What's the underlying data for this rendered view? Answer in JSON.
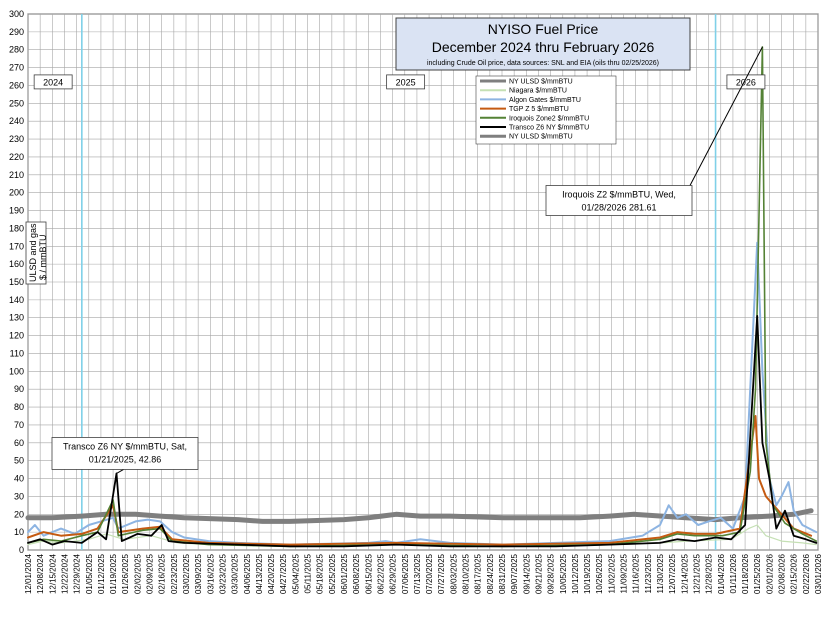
{
  "chart_data": {
    "type": "line",
    "title": "NYISO Fuel Price",
    "title_line2": "December 2024 thru February 2026",
    "subtitle": "including Crude Oil price, data sources: SNL and EIA (oils thru  02/25/2026)",
    "ylabel_line1": "ULSD and gas",
    "ylabel_line2": "$ / mmBTU",
    "ylim": [
      0,
      300
    ],
    "y_ticks": [
      0,
      10,
      20,
      30,
      40,
      50,
      60,
      70,
      80,
      90,
      100,
      110,
      120,
      130,
      140,
      150,
      160,
      170,
      180,
      190,
      200,
      210,
      220,
      230,
      240,
      250,
      260,
      270,
      280,
      290,
      300
    ],
    "x_start": "12/01/2024",
    "x_end": "03/01/2026",
    "x_ticks": [
      "12/01/2024",
      "12/08/2024",
      "12/15/2024",
      "12/22/2024",
      "12/29/2024",
      "01/05/2025",
      "01/12/2025",
      "01/19/2025",
      "01/26/2025",
      "02/02/2025",
      "02/09/2025",
      "02/16/2025",
      "02/23/2025",
      "03/02/2025",
      "03/09/2025",
      "03/16/2025",
      "03/23/2025",
      "03/30/2025",
      "04/06/2025",
      "04/13/2025",
      "04/20/2025",
      "04/27/2025",
      "05/04/2025",
      "05/11/2025",
      "05/18/2025",
      "05/25/2025",
      "06/01/2025",
      "06/08/2025",
      "06/15/2025",
      "06/22/2025",
      "06/29/2025",
      "07/06/2025",
      "07/13/2025",
      "07/20/2025",
      "07/27/2025",
      "08/03/2025",
      "08/10/2025",
      "08/17/2025",
      "08/24/2025",
      "08/31/2025",
      "09/07/2025",
      "09/14/2025",
      "09/21/2025",
      "09/28/2025",
      "10/05/2025",
      "10/12/2025",
      "10/19/2025",
      "10/26/2025",
      "11/02/2025",
      "11/09/2025",
      "11/16/2025",
      "11/23/2025",
      "11/30/2025",
      "12/07/2025",
      "12/14/2025",
      "12/21/2025",
      "12/28/2025",
      "01/04/2026",
      "01/11/2026",
      "01/18/2026",
      "01/25/2026",
      "02/01/2026",
      "02/08/2026",
      "02/15/2026",
      "02/22/2026",
      "03/01/2026"
    ],
    "year_markers": [
      "01/01/2025",
      "01/01/2026"
    ],
    "year_labels": [
      {
        "text": "2024",
        "date": "12/08/2024",
        "y": 262
      },
      {
        "text": "2025",
        "date": "06/29/2025",
        "y": 262
      },
      {
        "text": "2026",
        "date": "01/11/2026",
        "y": 262
      }
    ],
    "grid": true,
    "legend_position": "top-center",
    "series": [
      {
        "name": "NY ULSD   $/mmBTU",
        "color": "#7f7f7f",
        "width": 5,
        "points": [
          [
            "12/01/2024",
            18
          ],
          [
            "12/15/2024",
            18
          ],
          [
            "01/01/2025",
            19
          ],
          [
            "01/15/2025",
            20
          ],
          [
            "02/01/2025",
            20
          ],
          [
            "02/15/2025",
            19
          ],
          [
            "03/01/2025",
            18
          ],
          [
            "04/01/2025",
            17
          ],
          [
            "04/15/2025",
            16
          ],
          [
            "05/01/2025",
            16
          ],
          [
            "06/01/2025",
            17
          ],
          [
            "06/15/2025",
            18
          ],
          [
            "07/01/2025",
            20
          ],
          [
            "07/15/2025",
            19
          ],
          [
            "08/01/2025",
            19
          ],
          [
            "09/01/2025",
            18
          ],
          [
            "10/01/2025",
            18
          ],
          [
            "10/15/2025",
            18
          ],
          [
            "11/01/2025",
            19
          ],
          [
            "11/15/2025",
            20
          ],
          [
            "12/01/2025",
            19
          ],
          [
            "12/15/2025",
            18
          ],
          [
            "01/01/2026",
            17
          ],
          [
            "01/15/2026",
            18
          ],
          [
            "02/01/2026",
            19
          ],
          [
            "02/15/2026",
            20
          ],
          [
            "02/25/2026",
            22
          ]
        ]
      },
      {
        "name": "Niagara   $/mmBTU",
        "color": "#c5e0b4",
        "width": 1.2,
        "points": [
          [
            "12/01/2024",
            3
          ],
          [
            "12/10/2024",
            5
          ],
          [
            "12/20/2024",
            4
          ],
          [
            "01/05/2025",
            6
          ],
          [
            "01/15/2025",
            9
          ],
          [
            "01/25/2025",
            6
          ],
          [
            "02/10/2025",
            8
          ],
          [
            "02/25/2025",
            4
          ],
          [
            "03/15/2025",
            3
          ],
          [
            "05/01/2025",
            2
          ],
          [
            "07/01/2025",
            3
          ],
          [
            "09/01/2025",
            2
          ],
          [
            "11/01/2025",
            3
          ],
          [
            "12/01/2025",
            4
          ],
          [
            "12/15/2025",
            5
          ],
          [
            "01/10/2026",
            6
          ],
          [
            "01/20/2026",
            12
          ],
          [
            "01/25/2026",
            14
          ],
          [
            "01/30/2026",
            8
          ],
          [
            "02/08/2026",
            5
          ],
          [
            "02/20/2026",
            4
          ],
          [
            "02/28/2026",
            3
          ]
        ]
      },
      {
        "name": "Algon Gates   $/mmBTU",
        "color": "#8db4e2",
        "width": 2,
        "points": [
          [
            "12/01/2024",
            10
          ],
          [
            "12/05/2024",
            14
          ],
          [
            "12/10/2024",
            8
          ],
          [
            "12/20/2024",
            12
          ],
          [
            "12/28/2024",
            9
          ],
          [
            "01/05/2025",
            14
          ],
          [
            "01/12/2025",
            16
          ],
          [
            "01/19/2025",
            18
          ],
          [
            "01/22/2025",
            12
          ],
          [
            "02/01/2025",
            16
          ],
          [
            "02/08/2025",
            17
          ],
          [
            "02/15/2025",
            16
          ],
          [
            "02/22/2025",
            10
          ],
          [
            "03/01/2025",
            7
          ],
          [
            "03/15/2025",
            5
          ],
          [
            "04/01/2025",
            4
          ],
          [
            "05/01/2025",
            3
          ],
          [
            "06/15/2025",
            4
          ],
          [
            "06/25/2025",
            5
          ],
          [
            "07/01/2025",
            4
          ],
          [
            "07/15/2025",
            6
          ],
          [
            "08/01/2025",
            4
          ],
          [
            "09/01/2025",
            3
          ],
          [
            "10/01/2025",
            4
          ],
          [
            "11/01/2025",
            5
          ],
          [
            "11/20/2025",
            8
          ],
          [
            "11/30/2025",
            14
          ],
          [
            "12/05/2025",
            25
          ],
          [
            "12/10/2025",
            18
          ],
          [
            "12/15/2025",
            20
          ],
          [
            "12/22/2025",
            14
          ],
          [
            "12/28/2025",
            16
          ],
          [
            "01/04/2026",
            18
          ],
          [
            "01/11/2026",
            12
          ],
          [
            "01/18/2026",
            30
          ],
          [
            "01/25/2026",
            172
          ],
          [
            "01/28/2026",
            100
          ],
          [
            "02/01/2026",
            40
          ],
          [
            "02/05/2026",
            25
          ],
          [
            "02/08/2026",
            30
          ],
          [
            "02/12/2026",
            38
          ],
          [
            "02/15/2026",
            22
          ],
          [
            "02/20/2026",
            14
          ],
          [
            "02/28/2026",
            10
          ]
        ]
      },
      {
        "name": "TGP Z 5   $/mmBTU",
        "color": "#c55a11",
        "width": 2,
        "points": [
          [
            "12/01/2024",
            7
          ],
          [
            "12/10/2024",
            10
          ],
          [
            "12/20/2024",
            8
          ],
          [
            "01/01/2025",
            9
          ],
          [
            "01/10/2025",
            12
          ],
          [
            "01/19/2025",
            25
          ],
          [
            "01/22/2025",
            10
          ],
          [
            "02/05/2025",
            12
          ],
          [
            "02/15/2025",
            13
          ],
          [
            "02/22/2025",
            6
          ],
          [
            "03/15/2025",
            4
          ],
          [
            "05/01/2025",
            3
          ],
          [
            "07/01/2025",
            4
          ],
          [
            "09/01/2025",
            3
          ],
          [
            "11/01/2025",
            4
          ],
          [
            "11/30/2025",
            7
          ],
          [
            "12/10/2025",
            10
          ],
          [
            "12/20/2025",
            9
          ],
          [
            "01/01/2026",
            9
          ],
          [
            "01/15/2026",
            12
          ],
          [
            "01/24/2026",
            75
          ],
          [
            "01/26/2026",
            40
          ],
          [
            "01/30/2026",
            30
          ],
          [
            "02/08/2026",
            20
          ],
          [
            "02/15/2026",
            12
          ],
          [
            "02/25/2026",
            8
          ]
        ]
      },
      {
        "name": "Iroquois Zone2   $/mmBTU",
        "color": "#548235",
        "width": 1.6,
        "points": [
          [
            "12/01/2024",
            4
          ],
          [
            "12/10/2024",
            6
          ],
          [
            "12/20/2024",
            5
          ],
          [
            "01/01/2025",
            8
          ],
          [
            "01/10/2025",
            10
          ],
          [
            "01/19/2025",
            28
          ],
          [
            "01/22/2025",
            8
          ],
          [
            "02/05/2025",
            11
          ],
          [
            "02/15/2025",
            12
          ],
          [
            "02/22/2025",
            5
          ],
          [
            "03/15/2025",
            3
          ],
          [
            "05/01/2025",
            2
          ],
          [
            "07/01/2025",
            3
          ],
          [
            "09/01/2025",
            2
          ],
          [
            "11/01/2025",
            3
          ],
          [
            "11/30/2025",
            6
          ],
          [
            "12/10/2025",
            9
          ],
          [
            "12/20/2025",
            8
          ],
          [
            "01/05/2026",
            8
          ],
          [
            "01/15/2026",
            10
          ],
          [
            "01/21/2026",
            44
          ],
          [
            "01/24/2026",
            90
          ],
          [
            "01/28/2026",
            281.61
          ],
          [
            "01/30/2026",
            60
          ],
          [
            "02/03/2026",
            25
          ],
          [
            "02/10/2026",
            15
          ],
          [
            "02/20/2026",
            9
          ],
          [
            "02/28/2026",
            5
          ]
        ]
      },
      {
        "name": "Transco Z6 NY   $/mmBTU",
        "color": "#000000",
        "width": 1.8,
        "points": [
          [
            "12/01/2024",
            4
          ],
          [
            "12/08/2024",
            6
          ],
          [
            "12/15/2024",
            3
          ],
          [
            "12/22/2024",
            5
          ],
          [
            "01/01/2025",
            4
          ],
          [
            "01/10/2025",
            10
          ],
          [
            "01/15/2025",
            6
          ],
          [
            "01/21/2025",
            42.86
          ],
          [
            "01/24/2025",
            5
          ],
          [
            "02/02/2025",
            9
          ],
          [
            "02/10/2025",
            8
          ],
          [
            "02/16/2025",
            14
          ],
          [
            "02/20/2025",
            5
          ],
          [
            "03/01/2025",
            4
          ],
          [
            "04/01/2025",
            3
          ],
          [
            "05/01/2025",
            2
          ],
          [
            "06/01/2025",
            2
          ],
          [
            "07/01/2025",
            3
          ],
          [
            "08/01/2025",
            2
          ],
          [
            "09/01/2025",
            2
          ],
          [
            "10/01/2025",
            2
          ],
          [
            "11/01/2025",
            3
          ],
          [
            "11/30/2025",
            4
          ],
          [
            "12/10/2025",
            6
          ],
          [
            "12/20/2025",
            5
          ],
          [
            "01/01/2026",
            7
          ],
          [
            "01/10/2026",
            6
          ],
          [
            "01/18/2026",
            14
          ],
          [
            "01/25/2026",
            131
          ],
          [
            "01/28/2026",
            60
          ],
          [
            "02/01/2026",
            40
          ],
          [
            "02/05/2026",
            12
          ],
          [
            "02/10/2026",
            22
          ],
          [
            "02/15/2026",
            8
          ],
          [
            "02/22/2026",
            6
          ],
          [
            "02/28/2026",
            4
          ]
        ]
      }
    ],
    "legend_extra": {
      "name": "NY ULSD   $/mmBTU",
      "color": "#7f7f7f"
    },
    "annotations": [
      {
        "text_line1": "Transco Z6 NY   $/mmBTU, Sat,",
        "text_line2": "01/21/2025, 42.86",
        "point_date": "01/21/2025",
        "point_value": 42.86
      },
      {
        "text_line1": "Iroquois Z2   $/mmBTU, Wed,",
        "text_line2": "01/28/2026 281.61",
        "point_date": "01/28/2026",
        "point_value": 281.61
      }
    ]
  }
}
